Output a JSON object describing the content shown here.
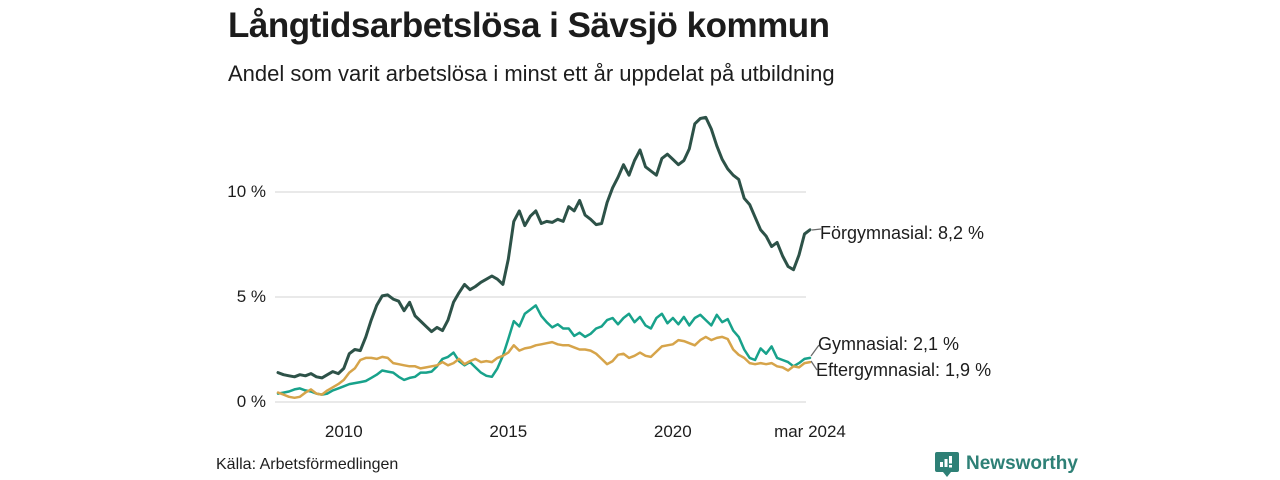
{
  "header": {
    "title": "Långtidsarbetslösa i Sävsjö kommun",
    "subtitle": "Andel som varit arbetslösa i minst ett år uppdelat på utbildning"
  },
  "footer": {
    "source": "Källa: Arbetsförmedlingen",
    "brand": {
      "name": "Newsworthy",
      "color": "#2e8076",
      "icon": "bar-chart-pin-icon"
    }
  },
  "colors": {
    "background": "#ffffff",
    "text": "#1d1d1d",
    "grid": "#dcdcdc",
    "connector": "#6b6b6b",
    "forgymnasial": "#2d5248",
    "gymnasial": "#18a28b",
    "eftergymnasial": "#d6a44a"
  },
  "chart_data": {
    "type": "line",
    "title": "Långtidsarbetslösa i Sävsjö kommun",
    "subtitle": "Andel som varit arbetslösa i minst ett år uppdelat på utbildning",
    "unit": "%",
    "x_start": 2008.0,
    "x_end": 2024.17,
    "ylim": [
      0,
      14.3
    ],
    "grid": "horizontal",
    "legend_position": "right-of-line-end",
    "y_ticks": [
      {
        "value": 0,
        "label": "0 %"
      },
      {
        "value": 5,
        "label": "5 %"
      },
      {
        "value": 10,
        "label": "10 %"
      }
    ],
    "x_ticks": [
      {
        "value": 2010,
        "label": "2010"
      },
      {
        "value": 2015,
        "label": "2015"
      },
      {
        "value": 2020,
        "label": "2020"
      },
      {
        "value": 2024.17,
        "label": "mar 2024"
      }
    ],
    "series": [
      {
        "name": "Förgymnasial",
        "label": "Förgymnasial: 8,2 %",
        "last_value": 8.2,
        "color": "#2d5248",
        "stroke_width": 3,
        "values": [
          1.4,
          1.3,
          1.25,
          1.2,
          1.3,
          1.25,
          1.35,
          1.2,
          1.15,
          1.3,
          1.45,
          1.35,
          1.6,
          2.3,
          2.5,
          2.45,
          3.1,
          3.9,
          4.6,
          5.05,
          5.1,
          4.9,
          4.8,
          4.35,
          4.75,
          4.1,
          3.85,
          3.6,
          3.35,
          3.55,
          3.4,
          3.9,
          4.75,
          5.2,
          5.6,
          5.35,
          5.5,
          5.7,
          5.85,
          6.0,
          5.85,
          5.6,
          6.8,
          8.6,
          9.1,
          8.4,
          8.85,
          9.1,
          8.5,
          8.6,
          8.55,
          8.7,
          8.6,
          9.3,
          9.1,
          9.6,
          8.9,
          8.7,
          8.45,
          8.5,
          9.5,
          10.2,
          10.7,
          11.3,
          10.8,
          11.5,
          12.0,
          11.2,
          11.0,
          10.8,
          11.6,
          11.8,
          11.55,
          11.3,
          11.5,
          12.05,
          13.25,
          13.5,
          13.55,
          13.0,
          12.2,
          11.55,
          11.1,
          10.8,
          10.6,
          9.7,
          9.4,
          8.8,
          8.2,
          7.9,
          7.4,
          7.6,
          6.95,
          6.45,
          6.3,
          7.0,
          8.0,
          8.2
        ]
      },
      {
        "name": "Gymnasial",
        "label": "Gymnasial: 2,1 %",
        "last_value": 2.1,
        "color": "#18a28b",
        "stroke_width": 2.5,
        "values": [
          0.4,
          0.45,
          0.5,
          0.6,
          0.65,
          0.55,
          0.5,
          0.4,
          0.35,
          0.4,
          0.55,
          0.65,
          0.75,
          0.85,
          0.9,
          0.95,
          1.0,
          1.15,
          1.3,
          1.5,
          1.45,
          1.4,
          1.2,
          1.05,
          1.15,
          1.2,
          1.4,
          1.4,
          1.45,
          1.7,
          2.05,
          2.15,
          2.35,
          1.95,
          1.75,
          1.9,
          1.65,
          1.4,
          1.25,
          1.2,
          1.6,
          2.2,
          3.0,
          3.85,
          3.6,
          4.2,
          4.4,
          4.6,
          4.1,
          3.8,
          3.55,
          3.7,
          3.5,
          3.5,
          3.15,
          3.3,
          3.1,
          3.25,
          3.5,
          3.6,
          3.9,
          4.0,
          3.7,
          4.0,
          4.2,
          3.8,
          4.05,
          3.65,
          3.5,
          4.0,
          4.2,
          3.75,
          4.0,
          3.7,
          4.05,
          3.65,
          4.0,
          4.15,
          3.9,
          3.65,
          4.15,
          3.8,
          3.95,
          3.4,
          3.1,
          2.5,
          2.1,
          2.0,
          2.55,
          2.3,
          2.65,
          2.1,
          2.0,
          1.9,
          1.7,
          1.85,
          2.05,
          2.1
        ]
      },
      {
        "name": "Eftergymnasial",
        "label": "Eftergymnasial: 1,9 %",
        "last_value": 1.9,
        "color": "#d6a44a",
        "stroke_width": 2.5,
        "values": [
          0.45,
          0.35,
          0.25,
          0.2,
          0.25,
          0.45,
          0.6,
          0.4,
          0.35,
          0.55,
          0.7,
          0.85,
          1.05,
          1.4,
          1.6,
          2.0,
          2.1,
          2.1,
          2.05,
          2.15,
          2.1,
          1.85,
          1.8,
          1.75,
          1.7,
          1.7,
          1.6,
          1.65,
          1.7,
          1.75,
          1.9,
          1.75,
          1.85,
          2.05,
          1.8,
          1.95,
          2.05,
          1.9,
          1.95,
          1.9,
          2.1,
          2.2,
          2.35,
          2.7,
          2.45,
          2.55,
          2.6,
          2.7,
          2.75,
          2.8,
          2.85,
          2.75,
          2.7,
          2.7,
          2.6,
          2.5,
          2.5,
          2.45,
          2.3,
          2.05,
          1.8,
          1.95,
          2.25,
          2.3,
          2.1,
          2.2,
          2.35,
          2.2,
          2.15,
          2.4,
          2.65,
          2.7,
          2.75,
          2.95,
          2.9,
          2.8,
          2.7,
          2.95,
          3.1,
          2.95,
          3.05,
          3.1,
          3.0,
          2.5,
          2.25,
          2.1,
          1.85,
          1.8,
          1.85,
          1.8,
          1.85,
          1.7,
          1.65,
          1.5,
          1.7,
          1.65,
          1.85,
          1.9
        ]
      }
    ]
  }
}
